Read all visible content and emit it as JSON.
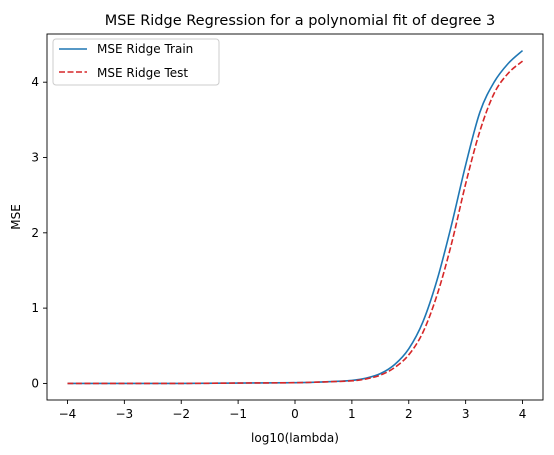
{
  "chart_data": {
    "type": "line",
    "title": "MSE Ridge Regression for a polynomial fit of degree 3",
    "xlabel": "log10(lambda)",
    "ylabel": "MSE",
    "xlim": [
      -4.36,
      4.36
    ],
    "ylim": [
      -0.22,
      4.64
    ],
    "xticks": [
      -4,
      -3,
      -2,
      -1,
      0,
      1,
      2,
      3,
      4
    ],
    "xtick_labels": [
      "−4",
      "−3",
      "−2",
      "−1",
      "0",
      "1",
      "2",
      "3",
      "4"
    ],
    "yticks": [
      0,
      1,
      2,
      3,
      4
    ],
    "ytick_labels": [
      "0",
      "1",
      "2",
      "3",
      "4"
    ],
    "grid": false,
    "legend_position": "top-left",
    "series": [
      {
        "name": "MSE Ridge Train",
        "color": "#1f77b4",
        "style": "solid",
        "x": [
          -4,
          -3,
          -2,
          -1,
          0,
          0.5,
          1,
          1.25,
          1.5,
          1.75,
          2,
          2.25,
          2.5,
          2.75,
          3,
          3.25,
          3.5,
          3.75,
          4
        ],
        "y": [
          0.0,
          0.0,
          0.0,
          0.005,
          0.01,
          0.02,
          0.04,
          0.07,
          0.13,
          0.25,
          0.46,
          0.82,
          1.38,
          2.1,
          2.9,
          3.6,
          4.0,
          4.25,
          4.42
        ]
      },
      {
        "name": "MSE Ridge Test",
        "color": "#d62728",
        "style": "dashed",
        "x": [
          -4,
          -3,
          -2,
          -1,
          0,
          0.5,
          1,
          1.25,
          1.5,
          1.75,
          2,
          2.25,
          2.5,
          2.75,
          3,
          3.25,
          3.5,
          3.75,
          4
        ],
        "y": [
          0.0,
          0.0,
          0.0,
          0.005,
          0.01,
          0.02,
          0.035,
          0.06,
          0.11,
          0.21,
          0.38,
          0.68,
          1.18,
          1.85,
          2.65,
          3.35,
          3.85,
          4.12,
          4.28
        ]
      }
    ]
  }
}
